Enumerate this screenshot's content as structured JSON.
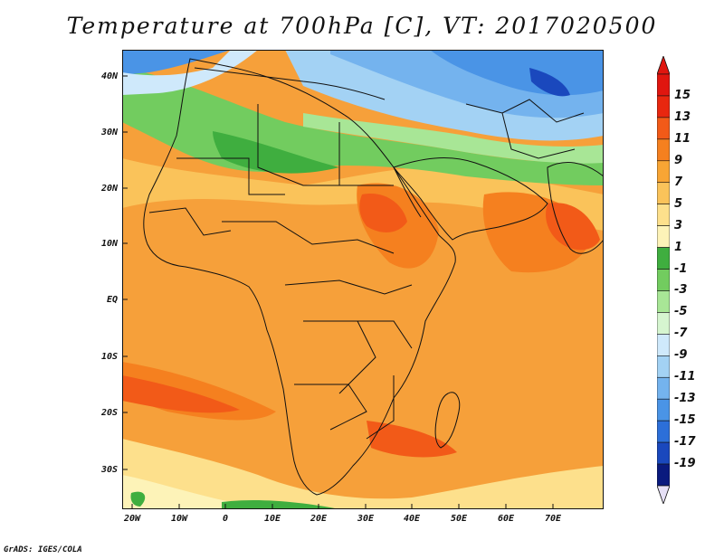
{
  "title": "Temperature at 700hPa [C], VT: 2017020500",
  "credit": "GrADS: IGES/COLA",
  "y_axis_labels": [
    "40N",
    "30N",
    "20N",
    "10N",
    "EQ",
    "10S",
    "20S",
    "30S"
  ],
  "x_axis_labels": [
    "20W",
    "10W",
    "0",
    "10E",
    "20E",
    "30E",
    "40E",
    "50E",
    "60E",
    "70E"
  ],
  "colorbar": {
    "labels": [
      "15",
      "13",
      "11",
      "9",
      "7",
      "5",
      "3",
      "1",
      "-1",
      "-3",
      "-5",
      "-7",
      "-9",
      "-11",
      "-13",
      "-15",
      "-17",
      "-19"
    ],
    "colors": [
      "#e8270f",
      "#f25a18",
      "#f5801f",
      "#f8a534",
      "#fac35a",
      "#fde08c",
      "#fdf3b8",
      "#3fae3f",
      "#72cc5f",
      "#a8e696",
      "#d6f5d0",
      "#cfe9fb",
      "#a3d2f4",
      "#74b3ee",
      "#4a94e6",
      "#2c6fd9",
      "#1a48bd",
      "#0a1a7e"
    ],
    "top_arrow_color": "#e0160f",
    "bottom_arrow_color": "#e6e0f6"
  }
}
